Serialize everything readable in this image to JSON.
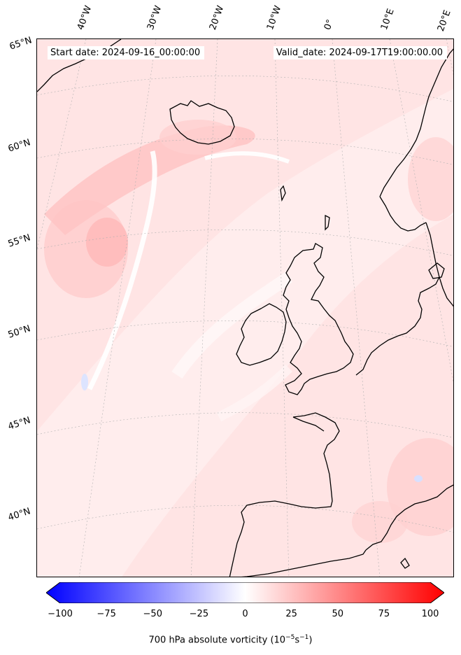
{
  "header": {
    "start_date": "Start date: 2024-09-16_00:00:00",
    "valid_date": "Valid_date: 2024-09-17T19:00:00.00"
  },
  "map": {
    "lon_labels": [
      "40°W",
      "30°W",
      "20°W",
      "10°W",
      "0°",
      "10°E",
      "20°E"
    ],
    "lat_labels": [
      "65°N",
      "60°N",
      "55°N",
      "50°N",
      "45°N",
      "40°N"
    ],
    "land_outline_color": "#000000",
    "gridline_color": "#b0b0b0"
  },
  "colorbar": {
    "min": -100,
    "max": 100,
    "tick_labels": [
      "−100",
      "−75",
      "−50",
      "−25",
      "0",
      "25",
      "50",
      "75",
      "100"
    ],
    "low_color": "#0000ff",
    "mid_color": "#ffffff",
    "high_color": "#ff0000",
    "title_main": "700 hPa absolute vorticity (10",
    "title_exp1": "−5",
    "title_mid": "s",
    "title_exp2": "−1",
    "title_end": ")"
  }
}
